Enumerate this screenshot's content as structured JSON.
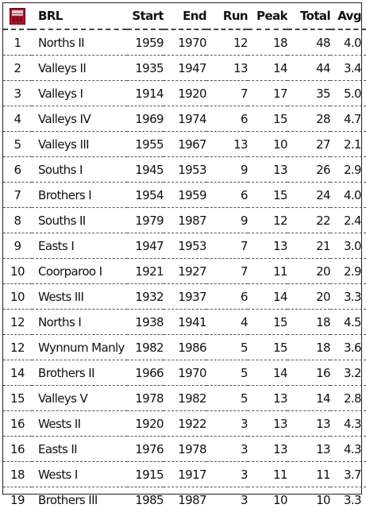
{
  "header": {
    "logo_icon": "brl-crest-icon",
    "team": "BRL",
    "start": "Start",
    "end": "End",
    "run": "Run",
    "peak": "Peak",
    "total": "Total",
    "avg": "Avg"
  },
  "colors": {
    "logo_red": "#b3122a",
    "text": "#111111",
    "rule": "#555555"
  },
  "rows": [
    {
      "rank": "1",
      "team": "Norths II",
      "start": "1959",
      "end": "1970",
      "run": "12",
      "peak": "18",
      "total": "48",
      "avg": "4.0"
    },
    {
      "rank": "2",
      "team": "Valleys II",
      "start": "1935",
      "end": "1947",
      "run": "13",
      "peak": "14",
      "total": "44",
      "avg": "3.4"
    },
    {
      "rank": "3",
      "team": "Valleys I",
      "start": "1914",
      "end": "1920",
      "run": "7",
      "peak": "17",
      "total": "35",
      "avg": "5.0"
    },
    {
      "rank": "4",
      "team": "Valleys IV",
      "start": "1969",
      "end": "1974",
      "run": "6",
      "peak": "15",
      "total": "28",
      "avg": "4.7"
    },
    {
      "rank": "5",
      "team": "Valleys III",
      "start": "1955",
      "end": "1967",
      "run": "13",
      "peak": "10",
      "total": "27",
      "avg": "2.1"
    },
    {
      "rank": "6",
      "team": "Souths I",
      "start": "1945",
      "end": "1953",
      "run": "9",
      "peak": "13",
      "total": "26",
      "avg": "2.9"
    },
    {
      "rank": "7",
      "team": "Brothers I",
      "start": "1954",
      "end": "1959",
      "run": "6",
      "peak": "15",
      "total": "24",
      "avg": "4.0"
    },
    {
      "rank": "8",
      "team": "Souths II",
      "start": "1979",
      "end": "1987",
      "run": "9",
      "peak": "12",
      "total": "22",
      "avg": "2.4"
    },
    {
      "rank": "9",
      "team": "Easts I",
      "start": "1947",
      "end": "1953",
      "run": "7",
      "peak": "13",
      "total": "21",
      "avg": "3.0"
    },
    {
      "rank": "10",
      "team": "Coorparoo I",
      "start": "1921",
      "end": "1927",
      "run": "7",
      "peak": "11",
      "total": "20",
      "avg": "2.9"
    },
    {
      "rank": "10",
      "team": "Wests III",
      "start": "1932",
      "end": "1937",
      "run": "6",
      "peak": "14",
      "total": "20",
      "avg": "3.3"
    },
    {
      "rank": "12",
      "team": "Norths I",
      "start": "1938",
      "end": "1941",
      "run": "4",
      "peak": "15",
      "total": "18",
      "avg": "4.5"
    },
    {
      "rank": "12",
      "team": "Wynnum Manly I",
      "start": "1982",
      "end": "1986",
      "run": "5",
      "peak": "15",
      "total": "18",
      "avg": "3.6"
    },
    {
      "rank": "14",
      "team": "Brothers II",
      "start": "1966",
      "end": "1970",
      "run": "5",
      "peak": "14",
      "total": "16",
      "avg": "3.2"
    },
    {
      "rank": "15",
      "team": "Valleys V",
      "start": "1978",
      "end": "1982",
      "run": "5",
      "peak": "13",
      "total": "14",
      "avg": "2.8"
    },
    {
      "rank": "16",
      "team": "Wests II",
      "start": "1920",
      "end": "1922",
      "run": "3",
      "peak": "13",
      "total": "13",
      "avg": "4.3"
    },
    {
      "rank": "16",
      "team": "Easts II",
      "start": "1976",
      "end": "1978",
      "run": "3",
      "peak": "13",
      "total": "13",
      "avg": "4.3"
    },
    {
      "rank": "18",
      "team": "Wests I",
      "start": "1915",
      "end": "1917",
      "run": "3",
      "peak": "11",
      "total": "11",
      "avg": "3.7"
    },
    {
      "rank": "19",
      "team": "Brothers III",
      "start": "1985",
      "end": "1987",
      "run": "3",
      "peak": "10",
      "total": "10",
      "avg": "3.3"
    }
  ]
}
